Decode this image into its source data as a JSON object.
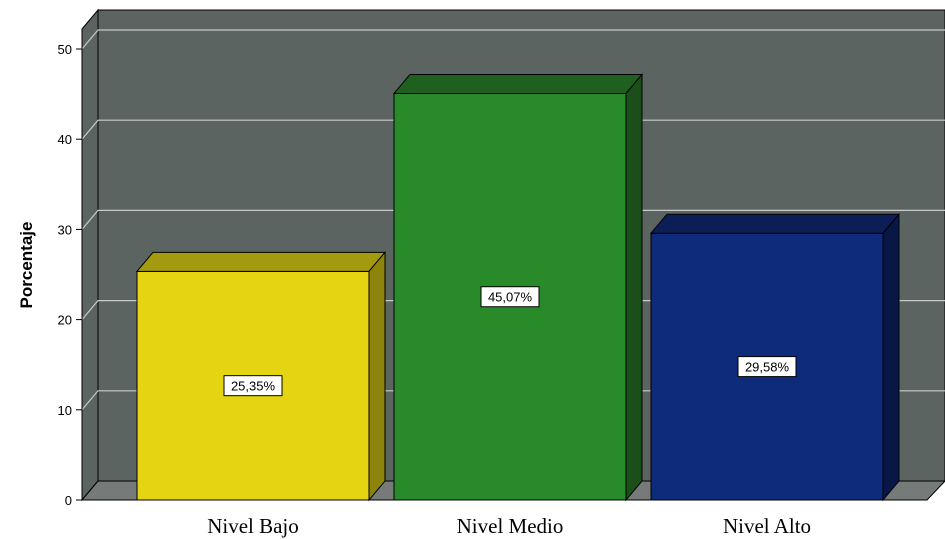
{
  "chart_data": {
    "type": "bar",
    "categories": [
      "Nivel Bajo",
      "Nivel Medio",
      "Nivel Alto"
    ],
    "values": [
      25.35,
      45.07,
      29.58
    ],
    "data_labels": [
      "25,35%",
      "45,07%",
      "29,58%"
    ],
    "ylabel": "Porcentaje",
    "ylim": [
      0,
      50
    ],
    "yticks": [
      "0",
      "10",
      "20",
      "30",
      "40",
      "50"
    ],
    "grid": true,
    "style": "3d",
    "colors": {
      "background": "#5b6460",
      "floor": "#767a78",
      "gridline": "#c8cbc9",
      "bars": [
        {
          "front": "#e4d412",
          "top": "#a49a10",
          "side": "#8d840c"
        },
        {
          "front": "#298a29",
          "top": "#1f5f1f",
          "side": "#1a4f1a"
        },
        {
          "front": "#0e2a7a",
          "top": "#0b1e55",
          "side": "#081746"
        }
      ]
    }
  }
}
